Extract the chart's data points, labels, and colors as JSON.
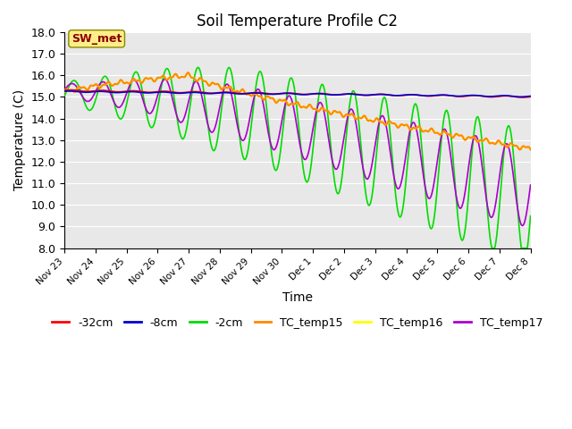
{
  "title": "Soil Temperature Profile C2",
  "xlabel": "Time",
  "ylabel": "Temperature (C)",
  "ylim": [
    8.0,
    18.0
  ],
  "yticks": [
    8.0,
    9.0,
    10.0,
    11.0,
    12.0,
    13.0,
    14.0,
    15.0,
    16.0,
    17.0,
    18.0
  ],
  "xtick_labels": [
    "Nov 23",
    "Nov 24",
    "Nov 25",
    "Nov 26",
    "Nov 27",
    "Nov 28",
    "Nov 29",
    "Nov 30",
    "Dec 1",
    "Dec 2",
    "Dec 3",
    "Dec 4",
    "Dec 5",
    "Dec 6",
    "Dec 7",
    "Dec 8"
  ],
  "bg_color": "#e8e8e8",
  "grid_color": "#ffffff",
  "lines": {
    "minus32cm": {
      "color": "#ff0000",
      "label": "-32cm",
      "lw": 1.2
    },
    "minus8cm": {
      "color": "#0000cc",
      "label": "-8cm",
      "lw": 1.2
    },
    "minus2cm": {
      "color": "#00dd00",
      "label": "-2cm",
      "lw": 1.2
    },
    "TC_temp15": {
      "color": "#ff8800",
      "label": "TC_temp15",
      "lw": 1.5
    },
    "TC_temp16": {
      "color": "#ffff00",
      "label": "TC_temp16",
      "lw": 1.5
    },
    "TC_temp17": {
      "color": "#aa00cc",
      "label": "TC_temp17",
      "lw": 1.2
    }
  },
  "swmet_label": "SW_met",
  "swmet_bg": "#ffee88",
  "swmet_text_color": "#880000",
  "swmet_edge_color": "#888800"
}
